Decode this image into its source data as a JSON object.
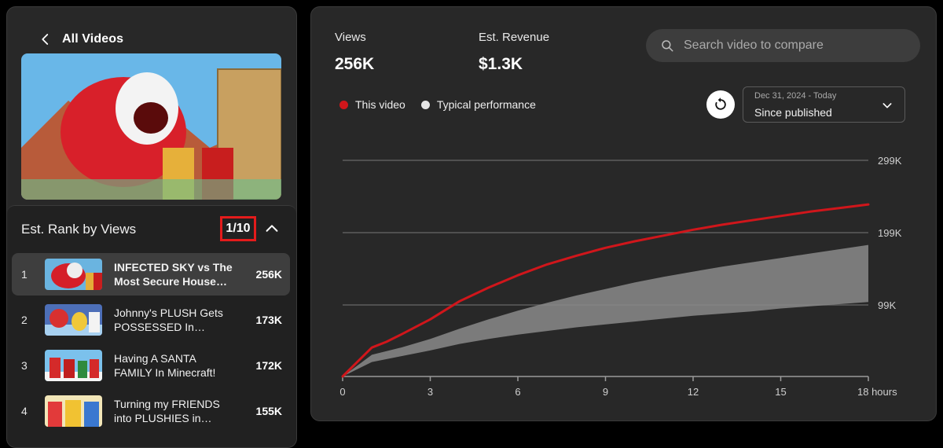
{
  "nav": {
    "back_label": "All Videos"
  },
  "rank": {
    "title": "Est. Rank by Views",
    "position": "1/10",
    "items": [
      {
        "rank": "1",
        "title": "INFECTED SKY vs The Most Secure House In...",
        "views": "256K",
        "selected": true
      },
      {
        "rank": "2",
        "title": "Johnny's PLUSH Gets POSSESSED In Minecraft!",
        "views": "173K"
      },
      {
        "rank": "3",
        "title": "Having A SANTA FAMILY In Minecraft!",
        "views": "172K"
      },
      {
        "rank": "4",
        "title": "Turning my FRIENDS into PLUSHIES in Minecraft!",
        "views": "155K"
      }
    ]
  },
  "metrics": {
    "views_label": "Views",
    "views_value": "256K",
    "revenue_label": "Est. Revenue",
    "revenue_value": "$1.3K"
  },
  "search": {
    "placeholder": "Search video to compare"
  },
  "legend": {
    "this_video": "This video",
    "typical": "Typical performance"
  },
  "date_range": {
    "caption": "Dec 31, 2024 - Today",
    "selected": "Since published"
  },
  "colors": {
    "accent": "#d0161b",
    "band": "#8a8a8a",
    "badge_border": "#e41b1b"
  },
  "chart_data": {
    "type": "line",
    "x_unit": "hours",
    "x_ticks": [
      "0",
      "3",
      "6",
      "9",
      "12",
      "15",
      "18 hours"
    ],
    "y_ticks": [
      "99K",
      "199K",
      "299K"
    ],
    "xlim": [
      0,
      18
    ],
    "ylim": [
      0,
      299000
    ],
    "series": [
      {
        "name": "This video",
        "x": [
          0,
          0.5,
          1,
          1.5,
          2,
          3,
          4,
          5,
          6,
          7,
          8,
          9,
          10,
          11,
          12,
          13,
          14,
          15,
          16,
          17,
          18
        ],
        "y": [
          0,
          20000,
          40000,
          48000,
          58000,
          79000,
          104000,
          123000,
          140000,
          155000,
          167000,
          178000,
          187000,
          195000,
          203000,
          210000,
          216000,
          222000,
          228000,
          233000,
          238000
        ]
      },
      {
        "name": "Typical performance",
        "x": [
          0,
          0.5,
          1,
          2,
          3,
          4,
          5,
          6,
          7,
          8,
          9,
          10,
          11,
          12,
          13,
          14,
          15,
          16,
          17,
          18
        ],
        "low": [
          0,
          10000,
          20000,
          28000,
          36000,
          45000,
          52000,
          58000,
          63000,
          68000,
          72000,
          76000,
          80000,
          84000,
          87000,
          90000,
          94000,
          97000,
          100000,
          103000
        ],
        "high": [
          0,
          15000,
          30000,
          40000,
          52000,
          66000,
          79000,
          91000,
          102000,
          112000,
          121000,
          130000,
          138000,
          145000,
          152000,
          158000,
          164000,
          170000,
          176000,
          182000
        ]
      }
    ]
  }
}
